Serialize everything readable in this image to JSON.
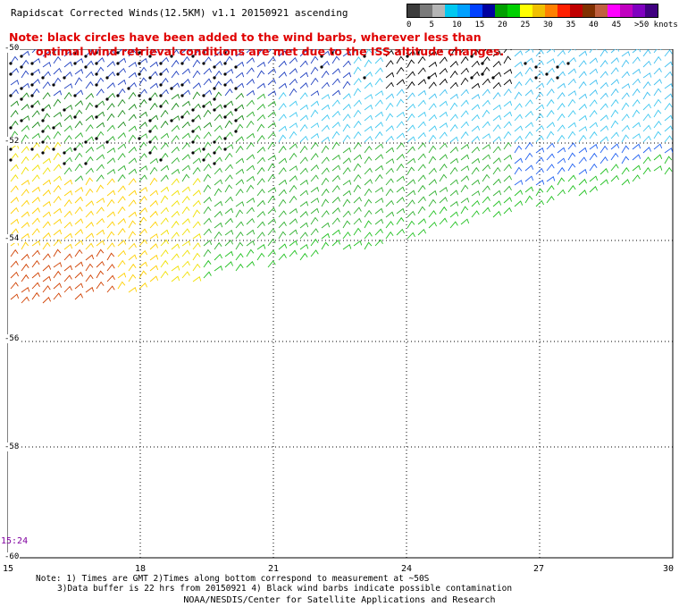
{
  "header": {
    "title": "Rapidscat Corrected Winds(12.5KM) v1.1 20150921 ascending",
    "note_line1": "Note: black circles have been added to the wind barbs, wherever less than",
    "note_line2": "optimal wind retrieval conditions are met due to the ISS altitude changes."
  },
  "legend": {
    "labels": [
      "0",
      "5",
      "10",
      "15",
      "20",
      "25",
      "30",
      "35",
      "40",
      "45",
      ">50 knots"
    ],
    "colors": [
      "#3c3c3c",
      "#7a7a7a",
      "#b5b5b5",
      "#00c8f0",
      "#00a0ff",
      "#0040ff",
      "#0000a0",
      "#00a000",
      "#00d000",
      "#ffff00",
      "#f0c000",
      "#ff8000",
      "#ff2000",
      "#c00000",
      "#803000",
      "#c06040",
      "#ff00ff",
      "#c000c0",
      "#8000c0",
      "#400080"
    ]
  },
  "map": {
    "lat_labels": [
      "-50",
      "-52",
      "-54",
      "-56",
      "-58",
      "-60"
    ],
    "lon_labels": [
      "15",
      "18",
      "21",
      "24",
      "27",
      "30"
    ],
    "timestamp": "15:24"
  },
  "footer": {
    "note1": "Note: 1) Times are GMT 2)Times along bottom correspond to measurement at ~50S",
    "note2": "3)Data buffer is 22 hrs from 20150921 4) Black wind barbs indicate possible contamination",
    "credit": "NOAA/NESDIS/Center for Satellite Applications and Research"
  }
}
